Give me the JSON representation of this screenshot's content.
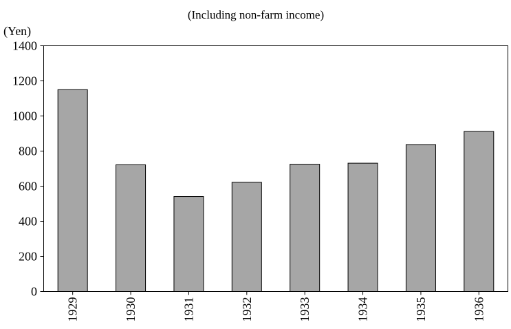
{
  "chart_data": {
    "type": "bar",
    "subtitle": "(Including non-farm income)",
    "ylabel": "(Yen)",
    "xlabel": "",
    "categories": [
      "1929",
      "1930",
      "1931",
      "1932",
      "1933",
      "1934",
      "1935",
      "1936"
    ],
    "values": [
      1150,
      722,
      541,
      622,
      725,
      731,
      837,
      912
    ],
    "ylim": [
      0,
      1400
    ],
    "yticks": [
      0,
      200,
      400,
      600,
      800,
      1000,
      1200,
      1400
    ],
    "grid": false,
    "legend": "none",
    "colors": {
      "bar_fill": "#a6a6a6",
      "bar_stroke": "#000000",
      "axis": "#000000"
    }
  }
}
